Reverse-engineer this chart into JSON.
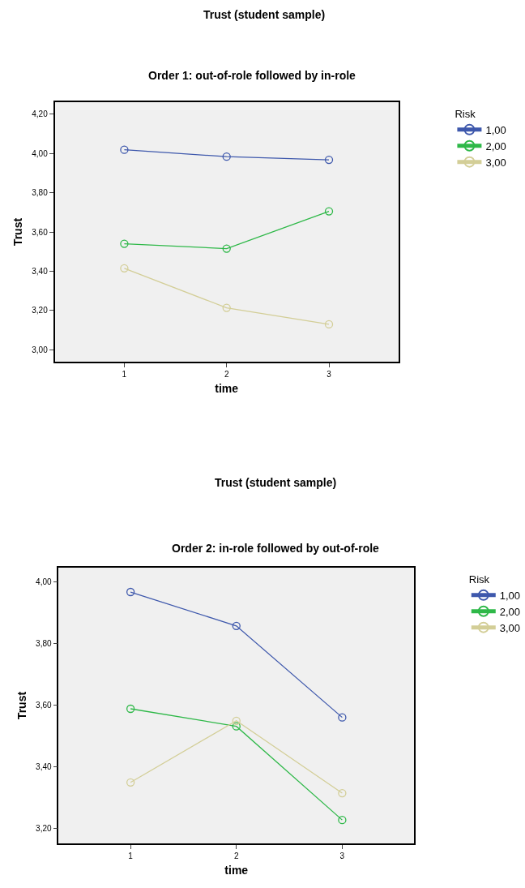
{
  "chart_data": [
    {
      "type": "line",
      "title": "Trust (student sample)",
      "subtitle": "Order 1: out-of-role followed by in-role",
      "xlabel": "time",
      "ylabel": "Trust",
      "legend_title": "Risk",
      "legend": "top right",
      "marker": "circle",
      "grid": false,
      "categories": [
        "1",
        "2",
        "3"
      ],
      "series": [
        {
          "name": "1,00",
          "color": "#3e58ac",
          "values": [
            4.018,
            3.983,
            3.967
          ]
        },
        {
          "name": "2,00",
          "color": "#2eb848",
          "values": [
            3.54,
            3.515,
            3.705
          ]
        },
        {
          "name": "3,00",
          "color": "#d3ce97",
          "values": [
            3.415,
            3.214,
            3.13
          ]
        }
      ],
      "ylim": [
        2.94,
        4.26
      ],
      "yticks": [
        {
          "value": 3.0,
          "label": "3,00"
        },
        {
          "value": 3.2,
          "label": "3,20"
        },
        {
          "value": 3.4,
          "label": "3,40"
        },
        {
          "value": 3.6,
          "label": "3,60"
        },
        {
          "value": 3.8,
          "label": "3,80"
        },
        {
          "value": 4.0,
          "label": "4,00"
        },
        {
          "value": 4.2,
          "label": "4,20"
        }
      ]
    },
    {
      "type": "line",
      "title": "Trust (student sample)",
      "subtitle": "Order 2: in-role followed by out-of-role",
      "xlabel": "time",
      "ylabel": "Trust",
      "legend_title": "Risk",
      "legend": "top right",
      "marker": "circle",
      "grid": false,
      "categories": [
        "1",
        "2",
        "3"
      ],
      "series": [
        {
          "name": "1,00",
          "color": "#3e58ac",
          "values": [
            3.966,
            3.856,
            3.559
          ]
        },
        {
          "name": "2,00",
          "color": "#2eb848",
          "values": [
            3.587,
            3.53,
            3.226
          ]
        },
        {
          "name": "3,00",
          "color": "#d3ce97",
          "values": [
            3.348,
            3.548,
            3.313
          ]
        }
      ],
      "ylim": [
        3.15,
        4.045
      ],
      "yticks": [
        {
          "value": 3.2,
          "label": "3,20"
        },
        {
          "value": 3.4,
          "label": "3,40"
        },
        {
          "value": 3.6,
          "label": "3,60"
        },
        {
          "value": 3.8,
          "label": "3,80"
        },
        {
          "value": 4.0,
          "label": "4,00"
        }
      ]
    }
  ]
}
